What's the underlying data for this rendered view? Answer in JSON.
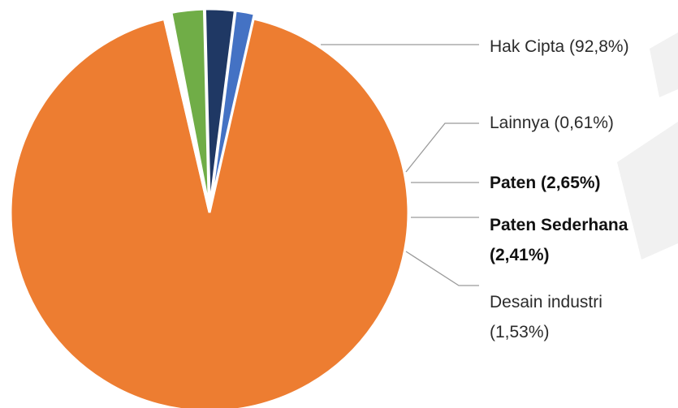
{
  "chart_data": {
    "type": "pie",
    "unit": "%",
    "slices": [
      {
        "name": "Hak Cipta",
        "value": 92.8,
        "label_lines": [
          "Hak Cipta (92,8%)"
        ],
        "color": "#ED7D31",
        "bold": false
      },
      {
        "name": "Lainnya",
        "value": 0.61,
        "label_lines": [
          "Lainnya (0,61%)"
        ],
        "color": "#FFFFFF",
        "bold": false
      },
      {
        "name": "Paten",
        "value": 2.65,
        "label_lines": [
          "Paten (2,65%)"
        ],
        "color": "#70AD47",
        "bold": true
      },
      {
        "name": "Paten Sederhana",
        "value": 2.41,
        "label_lines": [
          "Paten Sederhana",
          "(2,41%)"
        ],
        "color": "#1F3864",
        "bold": true
      },
      {
        "name": "Desain industri",
        "value": 1.53,
        "label_lines": [
          "Desain industri",
          "(1,53%)"
        ],
        "color": "#4472C4",
        "bold": false
      }
    ],
    "legend": "none",
    "labels": "leader-lines-right"
  }
}
